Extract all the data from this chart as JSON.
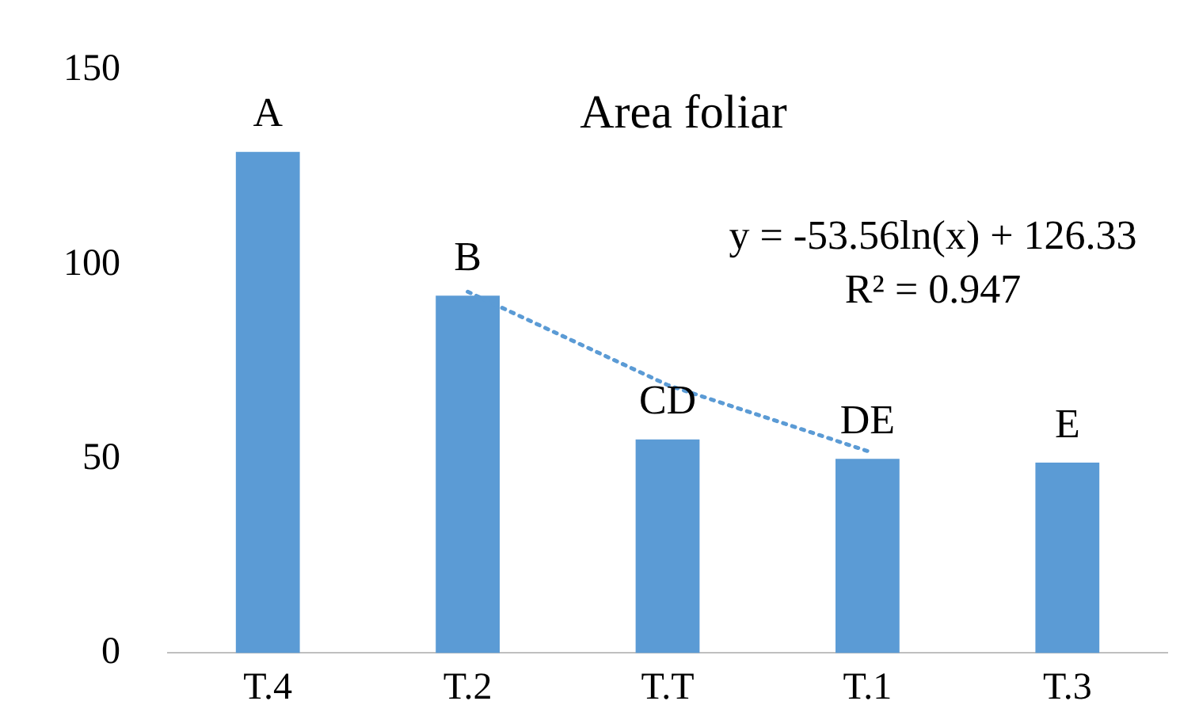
{
  "chart_data": {
    "type": "bar",
    "title": "Area foliar",
    "categories": [
      "T.4",
      "T.2",
      "T.T",
      "T.1",
      "T.3"
    ],
    "series": [
      {
        "color": "#5b9bd5",
        "values": [
          129,
          92,
          55,
          50,
          49
        ]
      },
      {
        "type": "line",
        "color": "#5b9bd5",
        "line_style": "dotted",
        "marker": "none",
        "x": [
          "T.4",
          "T.2",
          "T.T",
          "T.1",
          "T.3"
        ],
        "values": [
          null,
          93,
          69,
          52,
          null
        ]
      }
    ],
    "ylim": [
      0,
      150
    ],
    "yticks": [
      0,
      50,
      100,
      150
    ],
    "grid": false,
    "legend": false,
    "annotations": [
      "A",
      "B",
      "CD",
      "DE",
      "E",
      "y = -53.56ln(x) + 126.33",
      "R² = 0.947"
    ]
  }
}
